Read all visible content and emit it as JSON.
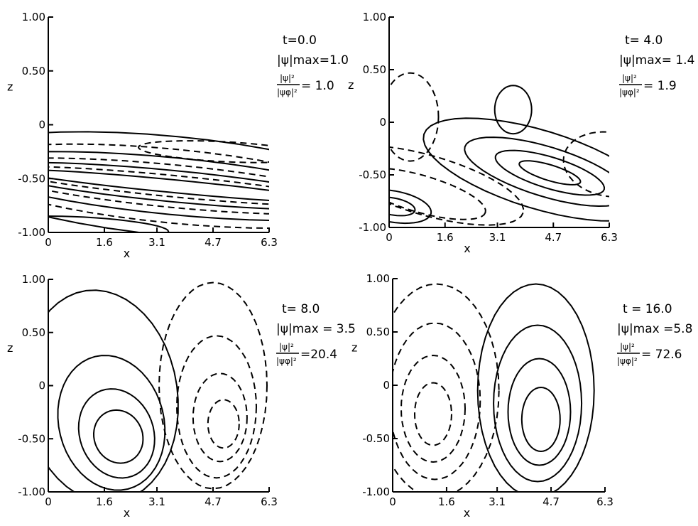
{
  "chart_data": [
    {
      "type": "contour",
      "xlabel": "x",
      "ylabel": "z",
      "xticks": [
        "0",
        "1.6",
        "3.1",
        "4.7",
        "6.3"
      ],
      "yticks": [
        "1.00",
        "0.50",
        "0",
        "-0.50",
        "-1.00"
      ],
      "xlim": [
        0,
        6.3
      ],
      "ylim": [
        -1.0,
        1.0
      ],
      "annotation": {
        "t": "t=0.0",
        "psi_max": "|ψ|max=1.0",
        "ratio_num": "|ψ|²",
        "ratio_den": "|ψφ|²",
        "ratio_val": "= 1.0"
      },
      "values": {
        "t": 0.0,
        "psi_max": 1.0,
        "energy_ratio": 1.0
      },
      "line_styles": {
        "positive": "solid",
        "negative": "dashed"
      }
    },
    {
      "type": "contour",
      "xlabel": "x",
      "ylabel": "z",
      "xticks": [
        "0",
        "1.6",
        "3.1",
        "4.7",
        "6.3"
      ],
      "yticks": [
        "1.00",
        "0.50",
        "0",
        "-0.50",
        "-1.00"
      ],
      "xlim": [
        0,
        6.3
      ],
      "ylim": [
        -1.0,
        1.0
      ],
      "annotation": {
        "t": "t= 4.0",
        "psi_max": "|ψ|max= 1.4",
        "ratio_num": "|ψ|²",
        "ratio_den": "|ψφ|²",
        "ratio_val": "= 1.9"
      },
      "values": {
        "t": 4.0,
        "psi_max": 1.4,
        "energy_ratio": 1.9
      },
      "line_styles": {
        "positive": "solid",
        "negative": "dashed"
      }
    },
    {
      "type": "contour",
      "xlabel": "x",
      "ylabel": "z",
      "xticks": [
        "0",
        "1.6",
        "3.1",
        "4.7",
        "6.3"
      ],
      "yticks": [
        "1.00",
        "0.50",
        "0",
        "-0.50",
        "-1.00"
      ],
      "xlim": [
        0,
        6.3
      ],
      "ylim": [
        -1.0,
        1.0
      ],
      "annotation": {
        "t": "t= 8.0",
        "psi_max": "|ψ|max = 3.5",
        "ratio_num": "|ψ|²",
        "ratio_den": "|ψφ|²",
        "ratio_val": "=20.4"
      },
      "values": {
        "t": 8.0,
        "psi_max": 3.5,
        "energy_ratio": 20.4
      },
      "line_styles": {
        "positive": "solid",
        "negative": "dashed"
      }
    },
    {
      "type": "contour",
      "xlabel": "x",
      "ylabel": "z",
      "xticks": [
        "0",
        "1.6",
        "3.1",
        "4.7",
        "6.3"
      ],
      "yticks": [
        "1.00",
        "0.50",
        "0",
        "-0.50",
        "-1.00"
      ],
      "xlim": [
        0,
        6.3
      ],
      "ylim": [
        -1.0,
        1.0
      ],
      "annotation": {
        "t": "t = 16.0",
        "psi_max": "|ψ|max =5.8",
        "ratio_num": "|ψ|²",
        "ratio_den": "|ψφ|²",
        "ratio_val": "= 72.6"
      },
      "values": {
        "t": 16.0,
        "psi_max": 5.8,
        "energy_ratio": 72.6
      },
      "line_styles": {
        "positive": "solid",
        "negative": "dashed"
      }
    }
  ]
}
